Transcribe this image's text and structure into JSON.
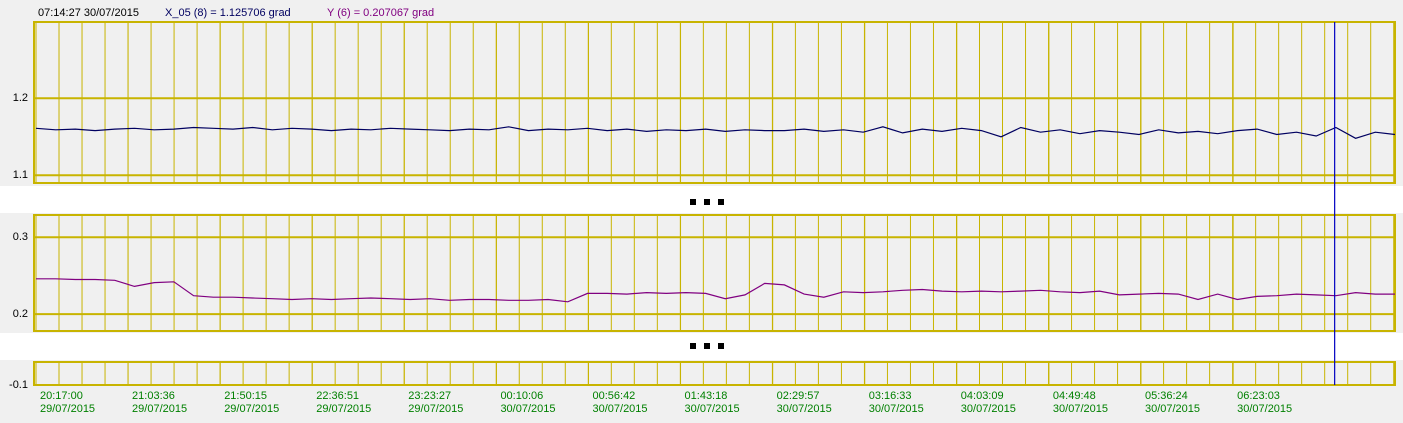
{
  "chart_data": [
    {
      "type": "line",
      "cursor": {
        "time": "07:14:27",
        "date": "30/07/2015"
      },
      "ylim": [
        1.09,
        1.299
      ],
      "yticks": [
        1.1,
        1.2
      ],
      "series": [
        {
          "name": "X_05 (8) = 1.125706 grad",
          "color": "#000060",
          "values": [
            1.161,
            1.159,
            1.16,
            1.158,
            1.16,
            1.161,
            1.159,
            1.16,
            1.162,
            1.161,
            1.16,
            1.162,
            1.159,
            1.161,
            1.16,
            1.158,
            1.16,
            1.159,
            1.161,
            1.16,
            1.159,
            1.158,
            1.16,
            1.159,
            1.163,
            1.158,
            1.16,
            1.159,
            1.161,
            1.158,
            1.16,
            1.157,
            1.159,
            1.158,
            1.16,
            1.157,
            1.159,
            1.158,
            1.158,
            1.16,
            1.157,
            1.159,
            1.156,
            1.163,
            1.155,
            1.16,
            1.157,
            1.161,
            1.158,
            1.15,
            1.162,
            1.156,
            1.159,
            1.154,
            1.158,
            1.156,
            1.153,
            1.159,
            1.155,
            1.157,
            1.154,
            1.158,
            1.16,
            1.153,
            1.156,
            1.151,
            1.162,
            1.148,
            1.156,
            1.153
          ]
        }
      ]
    },
    {
      "type": "line",
      "ylim": [
        0.178,
        0.329
      ],
      "yticks": [
        0.2,
        0.3
      ],
      "series": [
        {
          "name": "Y (6) = 0.207067 grad",
          "color": "#800080",
          "values": [
            0.246,
            0.246,
            0.245,
            0.245,
            0.244,
            0.236,
            0.241,
            0.242,
            0.224,
            0.222,
            0.222,
            0.221,
            0.22,
            0.219,
            0.22,
            0.219,
            0.22,
            0.221,
            0.22,
            0.219,
            0.22,
            0.218,
            0.219,
            0.219,
            0.218,
            0.218,
            0.219,
            0.216,
            0.227,
            0.227,
            0.226,
            0.228,
            0.227,
            0.228,
            0.227,
            0.22,
            0.225,
            0.24,
            0.238,
            0.226,
            0.222,
            0.229,
            0.228,
            0.229,
            0.231,
            0.232,
            0.23,
            0.229,
            0.23,
            0.229,
            0.23,
            0.231,
            0.229,
            0.228,
            0.23,
            0.225,
            0.226,
            0.227,
            0.226,
            0.219,
            0.226,
            0.219,
            0.223,
            0.224,
            0.226,
            0.225,
            0.224,
            0.228,
            0.226,
            0.226
          ]
        }
      ]
    },
    {
      "type": "line",
      "ylim": [
        -0.1,
        -0.07
      ],
      "yticks": [
        -0.1
      ],
      "series": [],
      "xlim": [
        {
          "time": "20:17:00",
          "date": "29/07/2015"
        },
        {
          "time": "07:45:00",
          "date": "30/07/2015"
        }
      ],
      "xticks": [
        {
          "time": "20:17:00",
          "date": "29/07/2015"
        },
        {
          "time": "21:03:36",
          "date": "29/07/2015"
        },
        {
          "time": "21:50:15",
          "date": "29/07/2015"
        },
        {
          "time": "22:36:51",
          "date": "29/07/2015"
        },
        {
          "time": "23:23:27",
          "date": "29/07/2015"
        },
        {
          "time": "00:10:06",
          "date": "30/07/2015"
        },
        {
          "time": "00:56:42",
          "date": "30/07/2015"
        },
        {
          "time": "01:43:18",
          "date": "30/07/2015"
        },
        {
          "time": "02:29:57",
          "date": "30/07/2015"
        },
        {
          "time": "03:16:33",
          "date": "30/07/2015"
        },
        {
          "time": "04:03:09",
          "date": "30/07/2015"
        },
        {
          "time": "04:49:48",
          "date": "30/07/2015"
        },
        {
          "time": "05:36:24",
          "date": "30/07/2015"
        },
        {
          "time": "06:23:03",
          "date": "30/07/2015"
        }
      ]
    }
  ]
}
